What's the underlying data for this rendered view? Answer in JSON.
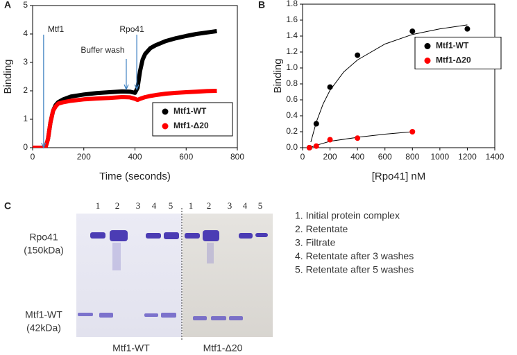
{
  "chart_data": [
    {
      "type": "line",
      "label": "A",
      "xlabel": "Time (seconds)",
      "ylabel": "Binding",
      "xlim": [
        0,
        800
      ],
      "xticks": [
        0,
        200,
        400,
        600,
        800
      ],
      "ylim": [
        0,
        5
      ],
      "yticks": [
        0,
        1,
        2,
        3,
        4,
        5
      ],
      "legend": "lower right",
      "x": [
        0,
        20,
        40,
        50,
        60,
        70,
        80,
        90,
        100,
        120,
        150,
        200,
        250,
        300,
        350,
        380,
        400,
        410,
        420,
        430,
        440,
        460,
        480,
        520,
        560,
        600,
        640,
        680,
        720
      ],
      "series": [
        {
          "name": "Mtf1-WT",
          "color": "#000000",
          "values": [
            0,
            0,
            0,
            0,
            0.3,
            0.9,
            1.3,
            1.5,
            1.6,
            1.7,
            1.8,
            1.87,
            1.92,
            1.95,
            1.98,
            1.97,
            1.93,
            2.1,
            2.7,
            3.1,
            3.3,
            3.5,
            3.6,
            3.75,
            3.85,
            3.93,
            4.0,
            4.05,
            4.1
          ]
        },
        {
          "name": "Mtf1-Δ20",
          "color": "#ff0000",
          "values": [
            0,
            0,
            0,
            0,
            0.3,
            0.9,
            1.3,
            1.45,
            1.55,
            1.6,
            1.65,
            1.7,
            1.73,
            1.75,
            1.78,
            1.77,
            1.72,
            1.68,
            1.72,
            1.75,
            1.78,
            1.82,
            1.85,
            1.9,
            1.93,
            1.95,
            1.97,
            1.99,
            2.0
          ]
        }
      ],
      "annotations": [
        {
          "text": "Mtf1",
          "x": 43,
          "y": 0
        },
        {
          "text": "Buffer wash",
          "x": 366,
          "y": 2.05
        },
        {
          "text": "Rpo41",
          "x": 407,
          "y": 2.05
        }
      ]
    },
    {
      "type": "scatter",
      "label": "B",
      "xlabel": "[Rpo41] nM",
      "ylabel": "Binding",
      "xlim": [
        0,
        1400
      ],
      "xticks": [
        0,
        200,
        400,
        600,
        800,
        1000,
        1200,
        1400
      ],
      "ylim": [
        0,
        1.8
      ],
      "yticks": [
        {
          "value": 0,
          "label": "0.0"
        },
        0.2,
        0.4,
        0.6,
        0.8,
        {
          "value": 1,
          "label": "1.0"
        },
        1.2,
        1.4,
        1.6,
        1.8
      ],
      "legend": "right",
      "series": [
        {
          "name": "Mtf1-WT",
          "color": "#000000",
          "x": [
            50,
            100,
            200,
            400,
            800,
            1200
          ],
          "values": [
            0,
            0.3,
            0.76,
            1.16,
            1.46,
            1.49
          ],
          "fit_x": [
            60,
            100,
            150,
            200,
            300,
            400,
            600,
            800,
            1000,
            1200
          ],
          "fit_values": [
            0.07,
            0.32,
            0.55,
            0.72,
            0.95,
            1.1,
            1.3,
            1.42,
            1.49,
            1.54
          ]
        },
        {
          "name": "Mtf1-Δ20",
          "color": "#ff0000",
          "x": [
            50,
            100,
            200,
            400,
            800
          ],
          "values": [
            0,
            0.02,
            0.1,
            0.12,
            0.2
          ],
          "fit_x": [
            50,
            100,
            200,
            400,
            600,
            800
          ],
          "fit_values": [
            0,
            0.03,
            0.08,
            0.13,
            0.17,
            0.2
          ]
        }
      ]
    }
  ],
  "gel": {
    "label": "C",
    "lanes_left": [
      "1",
      "2",
      "3",
      "4",
      "5"
    ],
    "lanes_right": [
      "1",
      "2",
      "3",
      "4",
      "5"
    ],
    "band_labels": [
      [
        "Rpo41",
        "(150kDa)"
      ],
      [
        "Mtf1-WT",
        "(42kDa)"
      ]
    ],
    "captions": [
      "Mtf1-WT",
      "Mtf1-Δ20"
    ],
    "key": [
      "1. Initial protein complex",
      "2. Retentate",
      "3. Filtrate",
      "4. Retentate after 3 washes",
      "5. Retentate after 5 washes"
    ]
  }
}
